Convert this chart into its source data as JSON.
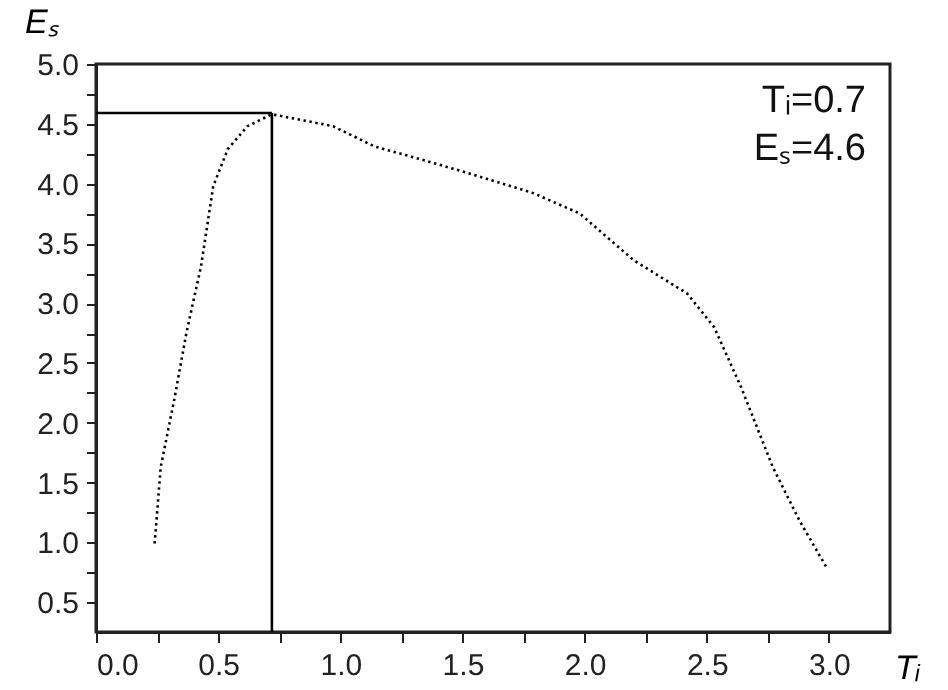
{
  "chart_data": {
    "type": "line",
    "xlabel": "Tᵢ",
    "ylabel": "Eₛ",
    "x": [
      0.24,
      0.265,
      0.32,
      0.37,
      0.43,
      0.48,
      0.54,
      0.62,
      0.72,
      0.97,
      1.14,
      1.3,
      1.52,
      1.79,
      1.98,
      2.2,
      2.42,
      2.53,
      2.64,
      2.77,
      2.88,
      2.99
    ],
    "series": [
      {
        "color": "#000000",
        "values": [
          0.99,
          1.63,
          2.19,
          2.75,
          3.31,
          3.98,
          4.29,
          4.48,
          4.58,
          4.48,
          4.31,
          4.22,
          4.09,
          3.92,
          3.75,
          3.36,
          3.08,
          2.8,
          2.3,
          1.63,
          1.18,
          0.79
        ]
      }
    ],
    "line_style": "dotted",
    "xlim": [
      0,
      3.25
    ],
    "ylim": [
      0.25,
      5.0
    ],
    "xticks": [
      {
        "value": 0,
        "label": "0.0"
      },
      {
        "value": 0.25,
        "label": null
      },
      {
        "value": 0.5,
        "label": "0.5"
      },
      {
        "value": 0.75,
        "label": null
      },
      {
        "value": 1,
        "label": "1.0"
      },
      {
        "value": 1.25,
        "label": null
      },
      {
        "value": 1.5,
        "label": "1.5"
      },
      {
        "value": 1.75,
        "label": null
      },
      {
        "value": 2,
        "label": "2.0"
      },
      {
        "value": 2.25,
        "label": null
      },
      {
        "value": 2.5,
        "label": "2.5"
      },
      {
        "value": 2.75,
        "label": null
      },
      {
        "value": 3,
        "label": "3.0"
      }
    ],
    "yticks": [
      {
        "value": 0.5,
        "label": "0.5"
      },
      {
        "value": 0.75,
        "label": null
      },
      {
        "value": 1,
        "label": "1.0"
      },
      {
        "value": 1.25,
        "label": null
      },
      {
        "value": 1.5,
        "label": "1.5"
      },
      {
        "value": 1.75,
        "label": null
      },
      {
        "value": 2,
        "label": "2.0"
      },
      {
        "value": 2.25,
        "label": null
      },
      {
        "value": 2.5,
        "label": "2.5"
      },
      {
        "value": 2.75,
        "label": null
      },
      {
        "value": 3,
        "label": "3.0"
      },
      {
        "value": 3.25,
        "label": null
      },
      {
        "value": 3.5,
        "label": "3.5"
      },
      {
        "value": 3.75,
        "label": null
      },
      {
        "value": 4,
        "label": "4.0"
      },
      {
        "value": 4.25,
        "label": null
      },
      {
        "value": 4.5,
        "label": "4.5"
      },
      {
        "value": 4.75,
        "label": null
      },
      {
        "value": 5,
        "label": "5.0"
      }
    ],
    "ref_lines": [
      {
        "axis": "x",
        "value": 0.72,
        "color": "#000000"
      },
      {
        "axis": "y",
        "value": 4.59,
        "color": "#000000"
      }
    ],
    "annotations": [
      "Tᵢ=0.7",
      "Eₛ=4.6"
    ]
  }
}
